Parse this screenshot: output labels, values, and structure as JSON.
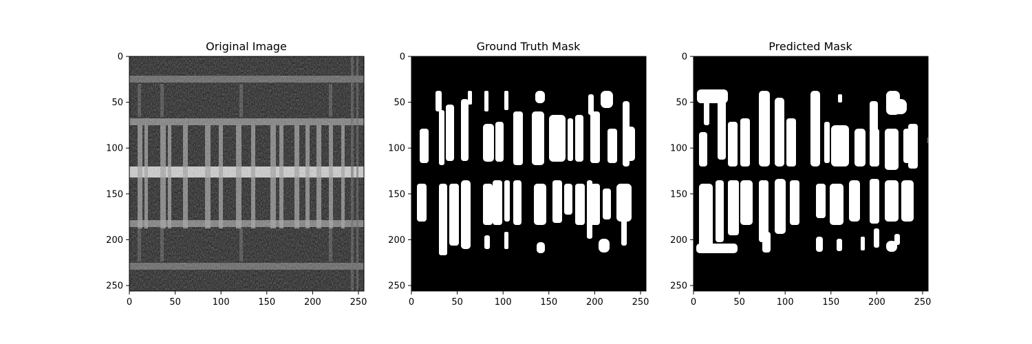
{
  "figure": {
    "panels": [
      {
        "title": "Original Image",
        "kind": "grayscale-image"
      },
      {
        "title": "Ground Truth Mask",
        "kind": "binary-mask"
      },
      {
        "title": "Predicted Mask",
        "kind": "binary-mask"
      }
    ],
    "axis": {
      "x_ticks": [
        "0",
        "50",
        "100",
        "150",
        "200",
        "250"
      ],
      "y_ticks": [
        "0",
        "50",
        "100",
        "150",
        "200",
        "250"
      ],
      "range": [
        0,
        256
      ]
    },
    "colors": {
      "mask_on": "#ffffff",
      "mask_off": "#000000"
    }
  }
}
